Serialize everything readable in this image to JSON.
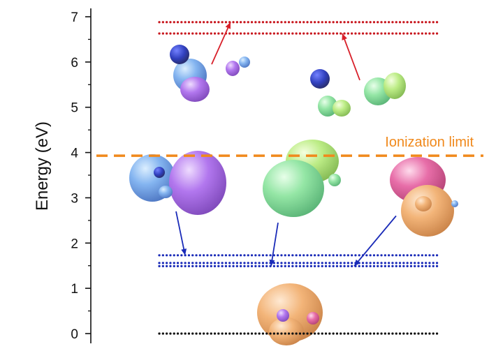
{
  "chart_data": {
    "type": "line",
    "title": "",
    "xlabel": "",
    "ylabel": "Energy (eV)",
    "ylim": [
      -0.2,
      7.2
    ],
    "yticks": [
      0,
      1,
      2,
      3,
      4,
      5,
      6,
      7
    ],
    "grid": false,
    "series": [
      {
        "color": "#c8171e",
        "style": "dotted",
        "y": 6.88
      },
      {
        "color": "#c8171e",
        "style": "dotted",
        "y": 6.63
      },
      {
        "color": "#1a2bb8",
        "style": "dotted",
        "y": 1.73
      },
      {
        "color": "#1a2bb8",
        "style": "dotted",
        "y": 1.56
      },
      {
        "color": "#1a2bb8",
        "style": "dotted",
        "y": 1.49
      },
      {
        "color": "#111111",
        "style": "dotted",
        "y": 0.0
      }
    ],
    "ionization_limit": {
      "label": "Ionization limit",
      "y": 3.93,
      "color": "#f0891c"
    },
    "arrows": [
      {
        "color": "#d8202a",
        "from_y": 5.95,
        "to_y": 6.88
      },
      {
        "color": "#d8202a",
        "from_y": 5.6,
        "to_y": 6.63
      },
      {
        "color": "#1a2bb8",
        "from_y": 2.7,
        "to_y": 1.73
      },
      {
        "color": "#1a2bb8",
        "from_y": 2.45,
        "to_y": 1.49
      },
      {
        "color": "#1a2bb8",
        "from_y": 2.6,
        "to_y": 1.49
      }
    ]
  },
  "orbital_colors": {
    "blue": "#4f8fe0",
    "purple": "#9e55e6",
    "green": "#79e08a",
    "lime": "#a8e86a",
    "pink": "#e0508e",
    "orange": "#f0a25c",
    "atom_n": "#0d1fb3"
  }
}
